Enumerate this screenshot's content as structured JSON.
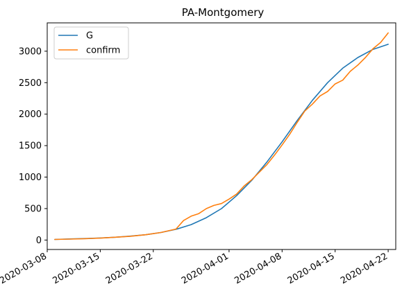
{
  "chart_data": {
    "type": "line",
    "title": "PA-Montgomery",
    "xlabel": "",
    "ylabel": "",
    "x_axis_type": "date",
    "xlim": [
      "2020-03-08",
      "2020-04-23"
    ],
    "ylim": [
      -150,
      3450
    ],
    "x_ticks": [
      "2020-03-08",
      "2020-03-15",
      "2020-03-22",
      "2020-04-01",
      "2020-04-08",
      "2020-04-15",
      "2020-04-22"
    ],
    "y_ticks": [
      0,
      500,
      1000,
      1500,
      2000,
      2500,
      3000
    ],
    "legend_position": "top-left",
    "grid": false,
    "series": [
      {
        "name": "G",
        "color": "#1f77b4",
        "x": [
          "2020-03-09",
          "2020-03-11",
          "2020-03-13",
          "2020-03-15",
          "2020-03-17",
          "2020-03-19",
          "2020-03-21",
          "2020-03-23",
          "2020-03-25",
          "2020-03-27",
          "2020-03-29",
          "2020-03-31",
          "2020-04-02",
          "2020-04-04",
          "2020-04-06",
          "2020-04-08",
          "2020-04-10",
          "2020-04-12",
          "2020-04-14",
          "2020-04-16",
          "2020-04-18",
          "2020-04-20",
          "2020-04-22"
        ],
        "values": [
          10,
          17,
          24,
          33,
          45,
          62,
          85,
          120,
          170,
          245,
          355,
          500,
          705,
          950,
          1240,
          1560,
          1900,
          2220,
          2500,
          2730,
          2900,
          3030,
          3110
        ]
      },
      {
        "name": "confirm",
        "color": "#ff7f0e",
        "x": [
          "2020-03-09",
          "2020-03-11",
          "2020-03-13",
          "2020-03-15",
          "2020-03-17",
          "2020-03-19",
          "2020-03-21",
          "2020-03-23",
          "2020-03-25",
          "2020-03-26",
          "2020-03-27",
          "2020-03-28",
          "2020-03-29",
          "2020-03-30",
          "2020-03-31",
          "2020-04-01",
          "2020-04-02",
          "2020-04-03",
          "2020-04-04",
          "2020-04-05",
          "2020-04-06",
          "2020-04-07",
          "2020-04-08",
          "2020-04-09",
          "2020-04-10",
          "2020-04-11",
          "2020-04-12",
          "2020-04-13",
          "2020-04-14",
          "2020-04-15",
          "2020-04-16",
          "2020-04-17",
          "2020-04-18",
          "2020-04-19",
          "2020-04-20",
          "2020-04-21",
          "2020-04-22"
        ],
        "values": [
          10,
          15,
          22,
          30,
          45,
          60,
          85,
          120,
          175,
          310,
          380,
          420,
          500,
          550,
          580,
          650,
          730,
          860,
          960,
          1080,
          1200,
          1350,
          1510,
          1680,
          1870,
          2050,
          2160,
          2290,
          2360,
          2480,
          2540,
          2680,
          2780,
          2900,
          3040,
          3140,
          3290
        ]
      }
    ]
  }
}
